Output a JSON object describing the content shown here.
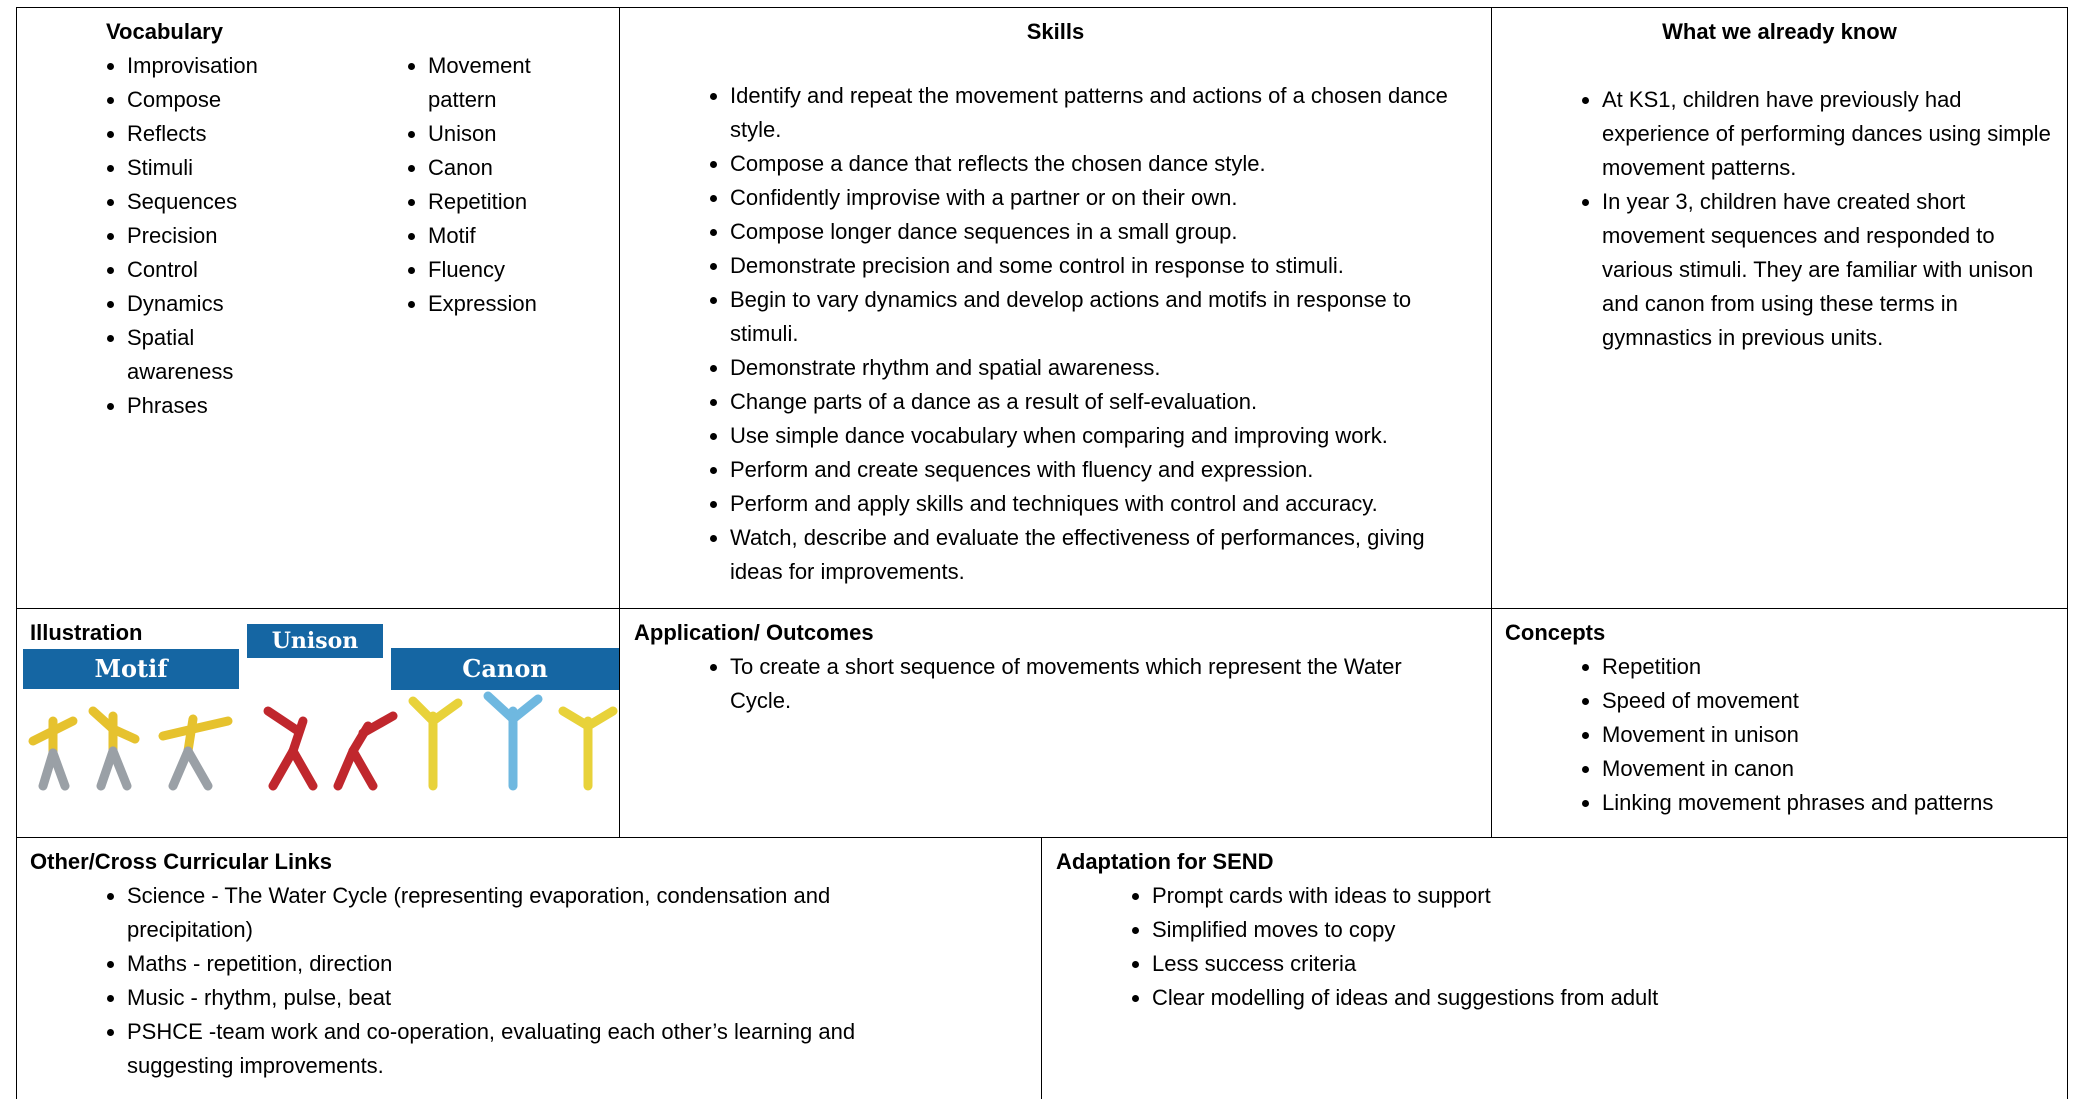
{
  "vocabulary": {
    "title": "Vocabulary",
    "column1": [
      "Improvisation",
      "Compose",
      "Reflects",
      "Stimuli",
      "Sequences",
      "Precision",
      "Control",
      "Dynamics",
      "Spatial awareness",
      "Phrases"
    ],
    "column2": [
      "Movement pattern",
      "Unison",
      "Canon",
      "Repetition",
      "Motif",
      "Fluency",
      "Expression"
    ]
  },
  "skills": {
    "title": "Skills",
    "items": [
      "Identify and repeat the movement patterns and actions of a chosen dance style.",
      "Compose a dance that reflects the chosen dance style.",
      "Confidently improvise with a partner or on their own.",
      "Compose longer dance sequences in a small group.",
      "Demonstrate precision and some control in response to stimuli.",
      "Begin to vary dynamics and develop actions and motifs in response to stimuli.",
      "Demonstrate rhythm and spatial awareness.",
      "Change parts of a dance as a result of self-evaluation.",
      "Use simple dance vocabulary when comparing and improving work.",
      "Perform and create sequences with fluency and expression.",
      "Perform and apply skills and techniques with control and accuracy.",
      "Watch, describe and evaluate the effectiveness of performances, giving ideas for improvements."
    ]
  },
  "prior_knowledge": {
    "title": "What we already know",
    "items": [
      "At KS1, children have previously had experience of performing dances using simple movement patterns.",
      "In year 3, children have created short movement sequences and responded to various stimuli. They are familiar with unison and canon from using these terms in gymnastics in previous units."
    ]
  },
  "illustration": {
    "title": "Illustration",
    "labels": [
      "Motif",
      "Unison",
      "Canon"
    ]
  },
  "application": {
    "title": "Application/ Outcomes",
    "items": [
      "To create a short sequence of movements which represent the Water Cycle."
    ]
  },
  "concepts": {
    "title": "Concepts",
    "items": [
      "Repetition",
      "Speed of movement",
      "Movement in unison",
      "Movement in canon",
      "Linking movement phrases and patterns"
    ]
  },
  "cross_curricular": {
    "title": "Other/Cross Curricular Links",
    "items": [
      "Science - The Water Cycle (representing evaporation, condensation and precipitation)",
      "Maths - repetition, direction",
      "Music - rhythm, pulse, beat",
      "PSHCE -team work and co-operation, evaluating each other’s learning and suggesting improvements."
    ]
  },
  "send": {
    "title": "Adaptation for SEND",
    "items": [
      "Prompt cards with ideas to support",
      "Simplified moves to copy",
      "Less success criteria",
      "Clear modelling of ideas and suggestions from adult"
    ]
  }
}
